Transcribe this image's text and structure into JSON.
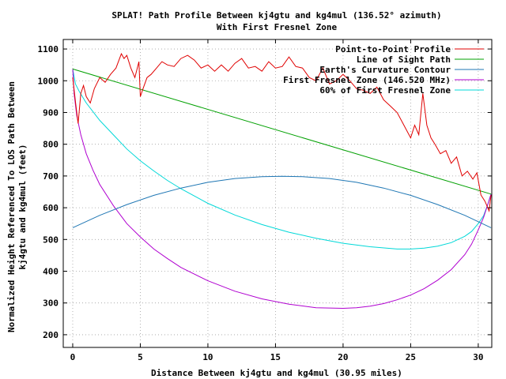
{
  "chart_data": {
    "type": "line",
    "title": "SPLAT! Path Profile Between kj4gtu and kg4mul (136.52° azimuth)",
    "subtitle": "With First Fresnel Zone",
    "xlabel": "Distance Between kj4gtu and kg4mul (30.95 miles)",
    "ylabel": "Normalized Height Referenced To LOS Path Between",
    "ylabel2": "kj4gtu and kg4mul (feet)",
    "xlim": [
      -0.7,
      31
    ],
    "ylim": [
      160,
      1130
    ],
    "xticks": [
      0,
      5,
      10,
      15,
      20,
      25,
      30
    ],
    "yticks": [
      200,
      300,
      400,
      500,
      600,
      700,
      800,
      900,
      1000,
      1100
    ],
    "grid": true,
    "legend_position": "top-right",
    "series": [
      {
        "name": "Point-to-Point Profile",
        "color": "#e00000",
        "x": [
          0,
          0.2,
          0.4,
          0.6,
          0.8,
          1.0,
          1.3,
          1.6,
          2.0,
          2.4,
          2.8,
          3.2,
          3.6,
          3.8,
          4.0,
          4.3,
          4.6,
          4.9,
          5.0,
          5.2,
          5.5,
          5.8,
          6.2,
          6.6,
          7.0,
          7.5,
          8.0,
          8.5,
          9.0,
          9.5,
          10.0,
          10.5,
          11.0,
          11.5,
          12.0,
          12.5,
          13.0,
          13.5,
          14.0,
          14.5,
          15.0,
          15.5,
          16.0,
          16.5,
          17.0,
          17.5,
          18.0,
          18.5,
          19.0,
          19.5,
          20.0,
          20.5,
          21.0,
          21.5,
          22.0,
          22.5,
          23.0,
          23.5,
          24.0,
          24.5,
          25.0,
          25.3,
          25.6,
          25.9,
          26.2,
          26.5,
          26.8,
          27.2,
          27.6,
          28.0,
          28.4,
          28.8,
          29.2,
          29.6,
          29.9,
          30.2,
          30.5,
          30.8,
          30.95
        ],
        "y": [
          1010,
          935,
          865,
          960,
          985,
          950,
          930,
          975,
          1010,
          995,
          1020,
          1040,
          1085,
          1070,
          1080,
          1040,
          1010,
          1060,
          950,
          975,
          1010,
          1020,
          1040,
          1060,
          1050,
          1045,
          1070,
          1080,
          1065,
          1040,
          1050,
          1030,
          1050,
          1030,
          1055,
          1070,
          1040,
          1045,
          1030,
          1060,
          1040,
          1045,
          1075,
          1045,
          1040,
          1010,
          1000,
          1040,
          990,
          1000,
          1020,
          1000,
          975,
          970,
          960,
          980,
          940,
          920,
          900,
          860,
          820,
          860,
          830,
          960,
          860,
          820,
          800,
          770,
          780,
          740,
          760,
          700,
          715,
          690,
          710,
          640,
          620,
          590,
          640
        ]
      },
      {
        "name": "Line of Sight Path",
        "color": "#00a000",
        "x": [
          0,
          30.95
        ],
        "y": [
          1037,
          643
        ]
      },
      {
        "name": "Earth's Curvature Contour",
        "color": "#1f77b4",
        "x": [
          0,
          2,
          4,
          6,
          8,
          10,
          12,
          14,
          15.5,
          17,
          19,
          21,
          23,
          25,
          27,
          29,
          30.95
        ],
        "y": [
          537,
          576,
          610,
          639,
          662,
          680,
          692,
          698,
          699,
          698,
          692,
          680,
          662,
          639,
          610,
          576,
          537
        ]
      },
      {
        "name": "First Fresnel Zone (146.520 MHz)",
        "color": "#b000d0",
        "x": [
          0,
          0.1,
          0.3,
          0.6,
          1.0,
          1.5,
          2.0,
          3.0,
          4.0,
          5.0,
          6.0,
          7.0,
          8.0,
          10.0,
          12.0,
          14.0,
          16.0,
          18.0,
          20.0,
          21.0,
          22.0,
          23.0,
          24.0,
          25.0,
          26.0,
          27.0,
          28.0,
          29.0,
          29.5,
          30.0,
          30.4,
          30.7,
          30.95
        ],
        "y": [
          1037,
          960,
          890,
          830,
          770,
          718,
          673,
          607,
          550,
          508,
          470,
          440,
          412,
          370,
          337,
          313,
          296,
          285,
          283,
          285,
          290,
          298,
          310,
          325,
          345,
          372,
          405,
          452,
          485,
          530,
          570,
          610,
          643
        ]
      },
      {
        "name": "60% of First Fresnel Zone",
        "color": "#00d8d8",
        "x": [
          0,
          0.2,
          0.5,
          1.0,
          2.0,
          3.0,
          4.0,
          5.0,
          6.0,
          7.0,
          8.0,
          10.0,
          12.0,
          14.0,
          16.0,
          18.0,
          20.0,
          22.0,
          24.0,
          25.0,
          26.0,
          27.0,
          28.0,
          29.0,
          29.5,
          30.0,
          30.4,
          30.7,
          30.95
        ],
        "y": [
          1037,
          990,
          965,
          930,
          875,
          830,
          785,
          748,
          716,
          686,
          660,
          614,
          577,
          547,
          523,
          504,
          488,
          477,
          470,
          470,
          473,
          479,
          490,
          510,
          525,
          550,
          575,
          610,
          643
        ]
      }
    ]
  }
}
